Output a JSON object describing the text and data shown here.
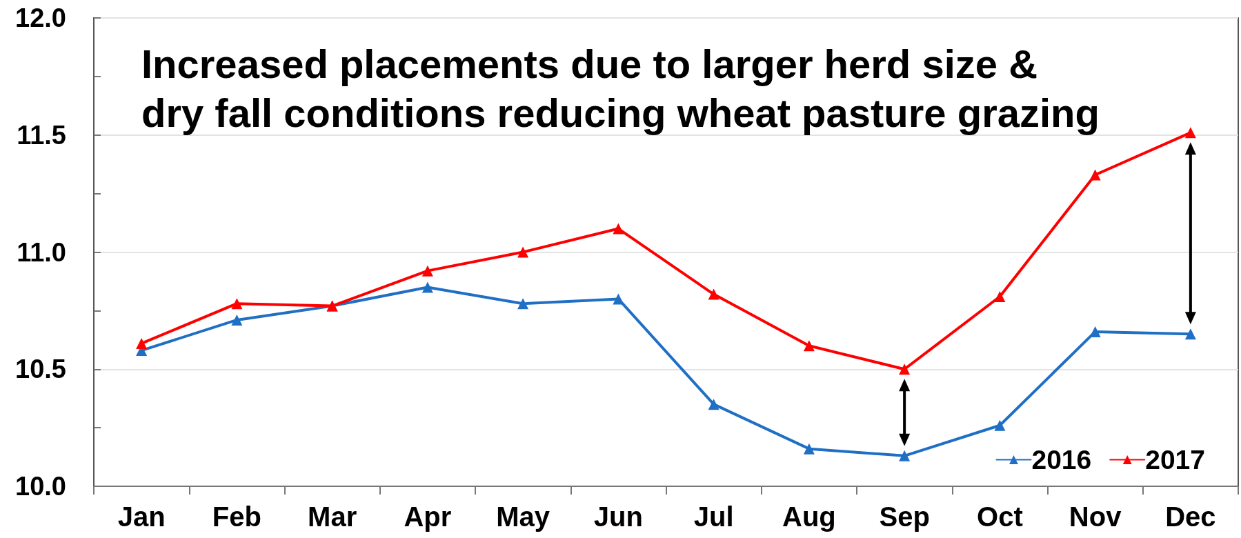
{
  "chart_data": {
    "type": "line",
    "title": "Increased placements due to larger herd size &\ndry fall conditions reducing wheat pasture grazing",
    "categories": [
      "Jan",
      "Feb",
      "Mar",
      "Apr",
      "May",
      "Jun",
      "Jul",
      "Aug",
      "Sep",
      "Oct",
      "Nov",
      "Dec"
    ],
    "series": [
      {
        "name": "2016",
        "color": "#1f6fc5",
        "values": [
          10.58,
          10.71,
          10.77,
          10.85,
          10.78,
          10.8,
          10.35,
          10.16,
          10.13,
          10.26,
          10.66,
          10.65
        ]
      },
      {
        "name": "2017",
        "color": "#ff0000",
        "values": [
          10.61,
          10.78,
          10.77,
          10.92,
          11.0,
          11.1,
          10.82,
          10.6,
          10.5,
          10.81,
          11.33,
          11.51
        ]
      }
    ],
    "ylim": [
      10.0,
      12.0
    ],
    "yticks": [
      {
        "value": 10.0,
        "label": "10.0"
      },
      {
        "value": 10.25,
        "label": null
      },
      {
        "value": 10.5,
        "label": "10.5"
      },
      {
        "value": 10.75,
        "label": null
      },
      {
        "value": 11.0,
        "label": "11.0"
      },
      {
        "value": 11.25,
        "label": null
      },
      {
        "value": 11.5,
        "label": "11.5"
      },
      {
        "value": 11.75,
        "label": null
      },
      {
        "value": 12.0,
        "label": "12.0"
      }
    ],
    "grid": "y",
    "legend": "bottom right",
    "marker": "triangle",
    "line_style": "solid"
  }
}
